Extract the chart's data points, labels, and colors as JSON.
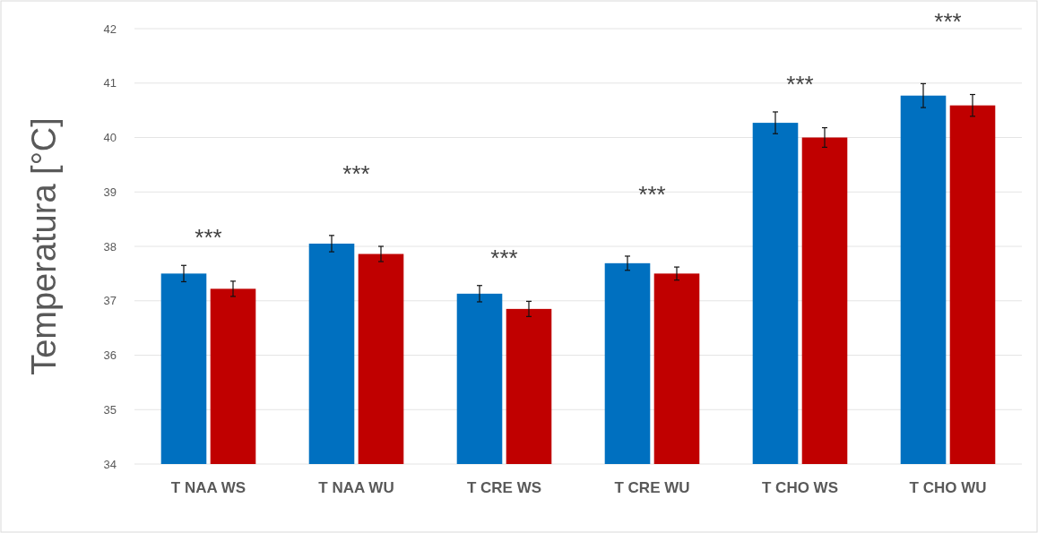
{
  "chart_data": {
    "type": "bar",
    "ylabel": "Temperatura [°C]",
    "categories": [
      "T NAA WS",
      "T NAA WU",
      "T CRE WS",
      "T CRE WU",
      "T CHO WS",
      "T CHO WU"
    ],
    "series": [
      {
        "color": "#0070c0",
        "values": [
          37.5,
          38.05,
          37.13,
          37.69,
          40.27,
          40.77
        ],
        "errors": [
          0.15,
          0.15,
          0.15,
          0.13,
          0.2,
          0.22
        ]
      },
      {
        "color": "#c00000",
        "values": [
          37.22,
          37.86,
          36.85,
          37.5,
          40.0,
          40.59
        ],
        "errors": [
          0.14,
          0.14,
          0.14,
          0.12,
          0.18,
          0.2
        ]
      }
    ],
    "ylim": [
      34,
      42
    ],
    "yticks": [
      34,
      35,
      36,
      37,
      38,
      39,
      40,
      41,
      42
    ],
    "grid": "y",
    "annotations": [
      "***",
      "***",
      "***",
      "***",
      "***",
      "***"
    ]
  }
}
